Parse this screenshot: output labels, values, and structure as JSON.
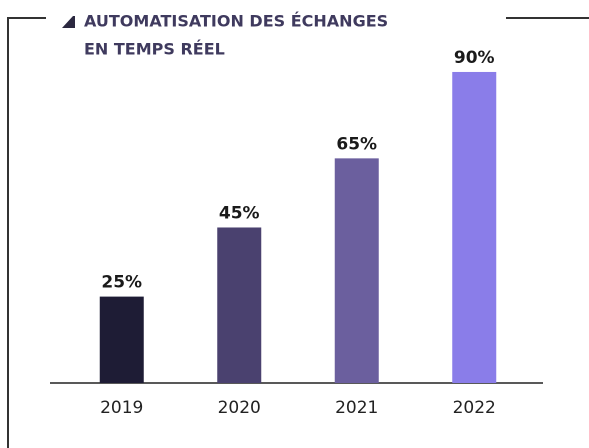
{
  "chart_data": {
    "type": "bar",
    "title": [
      "AUTOMATISATION DES ÉCHANGES",
      "EN TEMPS RÉEL"
    ],
    "categories": [
      "2019",
      "2020",
      "2021",
      "2022"
    ],
    "values": [
      25,
      45,
      65,
      90
    ],
    "value_labels": [
      "25%",
      "45%",
      "65%",
      "90%"
    ],
    "colors": [
      "#1e1c35",
      "#4a416f",
      "#6b5f9e",
      "#8a7de9"
    ],
    "ylim": [
      0,
      100
    ]
  }
}
